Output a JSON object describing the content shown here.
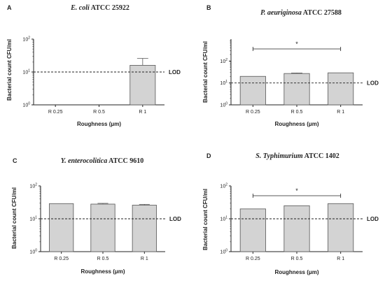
{
  "chart_data": [
    {
      "type": "bar",
      "panel": "A",
      "title_italic": "E. coli",
      "title_rest": " ATCC 25922",
      "xlabel": "Roughness (μm)",
      "ylabel": "Bacterial count CFU/ml",
      "yscale": "log",
      "ylim": [
        1,
        100
      ],
      "yticks": [
        {
          "value": 1,
          "base": "10",
          "exp": "0"
        },
        {
          "value": 10,
          "base": "10",
          "exp": "1"
        },
        {
          "value": 100,
          "base": "10",
          "exp": "2"
        }
      ],
      "categories": [
        "R 0.25",
        "R 0.5",
        "R 1"
      ],
      "values": [
        null,
        null,
        16
      ],
      "errors": [
        null,
        null,
        10
      ],
      "lod": {
        "value": 10,
        "label": "LOD"
      },
      "significance": null
    },
    {
      "type": "bar",
      "panel": "B",
      "title_italic": "P. aeuriginosa",
      "title_rest": " ATCC 27588",
      "xlabel": "Roughness (μm)",
      "ylabel": "Bacterial count CFU/ml",
      "yscale": "log",
      "ylim": [
        1,
        1000
      ],
      "yticks": [
        {
          "value": 1,
          "base": "10",
          "exp": "0"
        },
        {
          "value": 10,
          "base": "10",
          "exp": "1"
        },
        {
          "value": 100,
          "base": "10",
          "exp": "2"
        }
      ],
      "categories": [
        "R 0.25",
        "R 0.5",
        "R 1"
      ],
      "values": [
        20,
        27,
        29
      ],
      "errors": [
        0,
        1.5,
        0
      ],
      "lod": {
        "value": 10,
        "label": "LOD"
      },
      "significance": {
        "from": 0,
        "to": 2,
        "label": "*"
      }
    },
    {
      "type": "bar",
      "panel": "C",
      "title_italic": "Y. enterocolitica",
      "title_rest": " ATCC 9610",
      "xlabel": "Roughness (μm)",
      "ylabel": "Bacterial count CFU/ml",
      "yscale": "log",
      "ylim": [
        1,
        100
      ],
      "yticks": [
        {
          "value": 1,
          "base": "10",
          "exp": "0"
        },
        {
          "value": 10,
          "base": "10",
          "exp": "1"
        },
        {
          "value": 100,
          "base": "10",
          "exp": "2"
        }
      ],
      "categories": [
        "R 0.25",
        "R 0.5",
        "R 1"
      ],
      "values": [
        29,
        28,
        26
      ],
      "errors": [
        0,
        1.5,
        1.5
      ],
      "lod": {
        "value": 10,
        "label": "LOD"
      },
      "significance": null
    },
    {
      "type": "bar",
      "panel": "D",
      "title_italic": "S. Typhimurium",
      "title_rest": " ATCC 1402",
      "xlabel": "Roughness (μm)",
      "ylabel": "Bacterial count CFU/ml",
      "yscale": "log",
      "ylim": [
        1,
        100
      ],
      "yticks": [
        {
          "value": 1,
          "base": "10",
          "exp": "0"
        },
        {
          "value": 10,
          "base": "10",
          "exp": "1"
        },
        {
          "value": 100,
          "base": "10",
          "exp": "2"
        }
      ],
      "categories": [
        "R 0.25",
        "R 0.5",
        "R 1"
      ],
      "values": [
        20,
        25,
        29
      ],
      "errors": [
        0,
        0,
        0
      ],
      "lod": {
        "value": 10,
        "label": "LOD"
      },
      "significance": {
        "from": 0,
        "to": 2,
        "label": "*"
      }
    }
  ],
  "colors": {
    "bar_fill": "#d3d3d3",
    "bar_stroke": "#555555",
    "axis": "#222222",
    "lod_line": "#222222"
  }
}
